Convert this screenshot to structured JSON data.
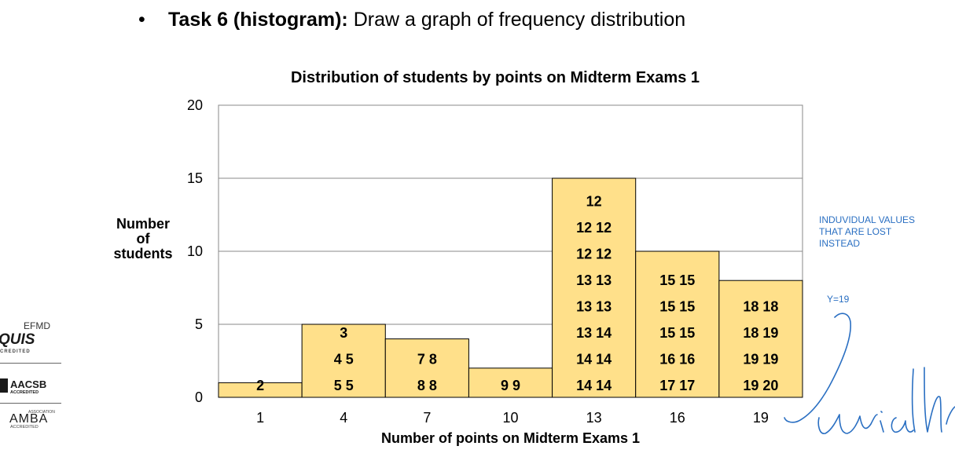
{
  "slide": {
    "task_bullet": "•",
    "task_bold": "Task 6 (histogram):",
    "task_text": " Draw a graph of frequency distribution"
  },
  "chart_data": {
    "type": "bar",
    "title": "Distribution of students by points on Midterm Exams 1",
    "xlabel": "Number of points on Midterm Exams 1",
    "ylabel_lines": [
      "Number",
      "of",
      "students"
    ],
    "categories": [
      "1",
      "4",
      "7",
      "10",
      "13",
      "16",
      "19"
    ],
    "values": [
      1,
      5,
      4,
      2,
      15,
      10,
      8
    ],
    "ylim": [
      0,
      20
    ],
    "yticks": [
      "0",
      "5",
      "10",
      "15",
      "20"
    ],
    "grid": true,
    "bar_color": "#ffe08a",
    "bar_labels": [
      [
        "2"
      ],
      [
        "3",
        "4 5",
        "5  5"
      ],
      [
        "7  8",
        "8  8"
      ],
      [
        "9  9"
      ],
      [
        "12",
        "12 12",
        "12 12",
        "13 13",
        "13 13",
        "13 14",
        "14 14",
        "14 14"
      ],
      [
        "15 15",
        "15 15",
        "15 15",
        "16 16",
        "17 17"
      ],
      [
        "18 18",
        "18 19",
        "19 19",
        "19 20"
      ]
    ]
  },
  "annotations": {
    "note_lines": [
      "INDUVIDUAL VALUES",
      "THAT ARE LOST",
      "INSTEAD"
    ],
    "y_label": "Y=19",
    "color": "#2a6fc2"
  },
  "logos": {
    "equis_top": "EFMD",
    "equis_main": "QUIS",
    "equis_sub": "CREDITED",
    "aacsb_main": "AACSB",
    "aacsb_sub": "ACCREDITED",
    "amba_top": "ASSOCIATION",
    "amba_main": "AMBA",
    "amba_sub": "ACCREDITED"
  }
}
